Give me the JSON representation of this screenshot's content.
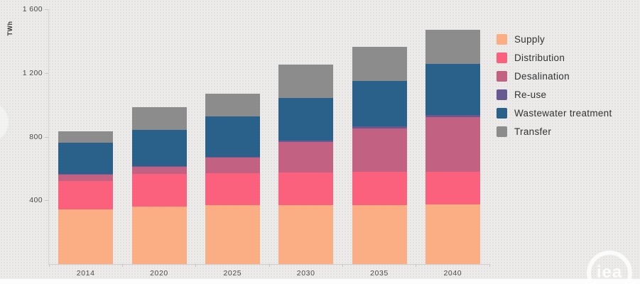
{
  "chart_data": {
    "type": "bar",
    "stacked": true,
    "title": "",
    "xlabel": "",
    "ylabel": "TWh",
    "ylim": [
      0,
      1600
    ],
    "grid": false,
    "legend_position": "right",
    "categories": [
      "2014",
      "2020",
      "2025",
      "2030",
      "2035",
      "2040"
    ],
    "series": [
      {
        "name": "Supply",
        "color": "#FBAD84",
        "values": [
          345,
          360,
          368,
          372,
          372,
          373
        ]
      },
      {
        "name": "Distribution",
        "color": "#FB617D",
        "values": [
          175,
          205,
          203,
          205,
          208,
          208
        ]
      },
      {
        "name": "Desalination",
        "color": "#C26181",
        "values": [
          42,
          45,
          97,
          190,
          271,
          342
        ]
      },
      {
        "name": "Re-use",
        "color": "#685A90",
        "values": [
          4,
          5,
          7,
          9,
          12,
          15
        ]
      },
      {
        "name": "Wastewater treatment",
        "color": "#2A618A",
        "values": [
          197,
          226,
          251,
          266,
          289,
          320
        ]
      },
      {
        "name": "Transfer",
        "color": "#8C8C8C",
        "values": [
          71,
          146,
          142,
          210,
          214,
          215
        ]
      }
    ],
    "y_ticks": [
      {
        "value": 400,
        "label": "400"
      },
      {
        "value": 800,
        "label": "800"
      },
      {
        "value": 1200,
        "label": "1 200"
      },
      {
        "value": 1600,
        "label": "1 600"
      }
    ],
    "totals": [
      834,
      987,
      1068,
      1252,
      1366,
      1473
    ]
  },
  "branding": {
    "logo_text": "iea"
  }
}
